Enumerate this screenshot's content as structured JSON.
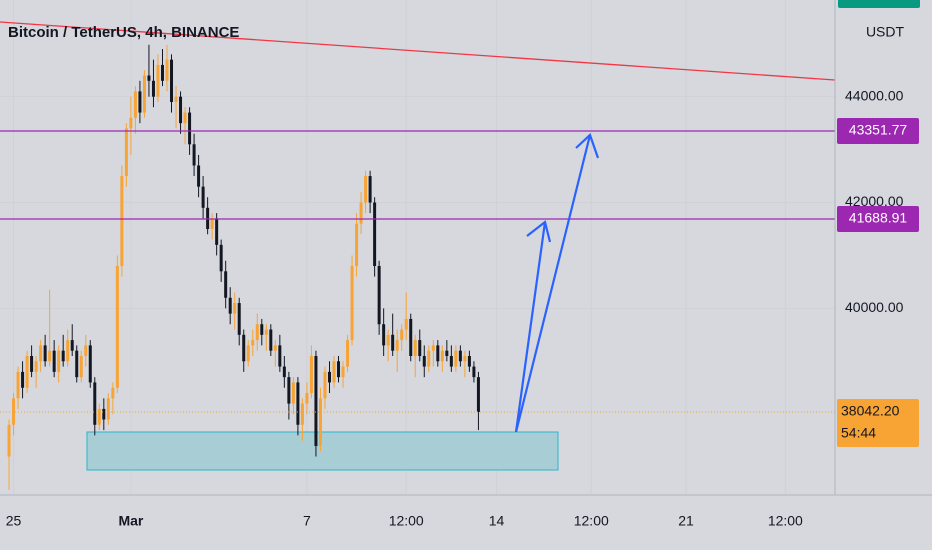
{
  "chart_data": {
    "type": "candlestick",
    "title": "Bitcoin / TetherUS, 4h, BINANCE",
    "currency": "USDT",
    "up_color": "#f7a434",
    "down_color": "#131722",
    "ylim": [
      36473,
      45827
    ],
    "xlim": [
      -2,
      183
    ],
    "yticks": [
      {
        "value": 44000,
        "label": "44000.00"
      },
      {
        "value": 42000,
        "label": "42000.00"
      },
      {
        "value": 40000,
        "label": "40000.00"
      }
    ],
    "xticks": [
      {
        "value": 1,
        "label": "25"
      },
      {
        "value": 27,
        "label": "Mar"
      },
      {
        "value": 66,
        "label": "7"
      },
      {
        "value": 88,
        "label": "12:00"
      },
      {
        "value": 108,
        "label": "14"
      },
      {
        "value": 129,
        "label": "12:00"
      },
      {
        "value": 150,
        "label": "21"
      },
      {
        "value": 172,
        "label": "12:00"
      }
    ],
    "grid": true,
    "hlines": [
      {
        "value": 43351.77,
        "label": "43351.77",
        "color": "#9c27b0"
      },
      {
        "value": 41688.91,
        "label": "41688.91",
        "color": "#9c27b0"
      }
    ],
    "last_price": {
      "value": 38042.2,
      "label": "38042.20",
      "countdown": "54:44",
      "color": "#f7a434"
    },
    "ohlc": [
      [
        37200,
        37900,
        36570,
        37800
      ],
      [
        37800,
        38400,
        37600,
        38300
      ],
      [
        38300,
        38900,
        38100,
        38800
      ],
      [
        38800,
        39000,
        38300,
        38500
      ],
      [
        38500,
        39200,
        38400,
        39100
      ],
      [
        39100,
        39300,
        38700,
        38800
      ],
      [
        38800,
        39100,
        38500,
        39000
      ],
      [
        39000,
        39400,
        38800,
        39300
      ],
      [
        39300,
        39500,
        38900,
        39000
      ],
      [
        39000,
        40350,
        38900,
        39200
      ],
      [
        39200,
        39400,
        38700,
        38800
      ],
      [
        38800,
        39300,
        38600,
        39200
      ],
      [
        39200,
        39500,
        38900,
        39000
      ],
      [
        39000,
        39600,
        38900,
        39400
      ],
      [
        39400,
        39700,
        39100,
        39200
      ],
      [
        39200,
        39300,
        38600,
        38700
      ],
      [
        38700,
        39200,
        38600,
        39100
      ],
      [
        39100,
        39500,
        38900,
        39300
      ],
      [
        39300,
        39400,
        38500,
        38600
      ],
      [
        38600,
        38700,
        37600,
        37800
      ],
      [
        37800,
        38200,
        37700,
        38100
      ],
      [
        38100,
        38300,
        37700,
        37900
      ],
      [
        37900,
        38400,
        37800,
        38300
      ],
      [
        38300,
        38600,
        38000,
        38500
      ],
      [
        38500,
        41000,
        38400,
        40800
      ],
      [
        40800,
        42700,
        40600,
        42500
      ],
      [
        42500,
        43500,
        42300,
        43400
      ],
      [
        43400,
        44000,
        42900,
        43600
      ],
      [
        43600,
        44200,
        43300,
        44100
      ],
      [
        44100,
        44300,
        43500,
        43700
      ],
      [
        43700,
        44500,
        43600,
        44400
      ],
      [
        44400,
        44980,
        44000,
        44300
      ],
      [
        44300,
        44700,
        43800,
        44000
      ],
      [
        44000,
        44800,
        43900,
        44600
      ],
      [
        44600,
        44900,
        44200,
        44300
      ],
      [
        44300,
        44980,
        44100,
        44700
      ],
      [
        44700,
        44800,
        43700,
        43900
      ],
      [
        43900,
        44200,
        43400,
        44000
      ],
      [
        44000,
        44100,
        43300,
        43500
      ],
      [
        43500,
        43800,
        43100,
        43700
      ],
      [
        43700,
        43800,
        42900,
        43100
      ],
      [
        43100,
        43300,
        42500,
        42700
      ],
      [
        42700,
        42900,
        42100,
        42300
      ],
      [
        42300,
        42500,
        41700,
        41900
      ],
      [
        41900,
        42100,
        41400,
        41500
      ],
      [
        41500,
        41800,
        41300,
        41700
      ],
      [
        41700,
        41800,
        41000,
        41200
      ],
      [
        41200,
        41300,
        40500,
        40700
      ],
      [
        40700,
        40900,
        40000,
        40200
      ],
      [
        40200,
        40400,
        39700,
        39900
      ],
      [
        39900,
        40300,
        39600,
        40100
      ],
      [
        40100,
        40200,
        39300,
        39500
      ],
      [
        39500,
        39600,
        38800,
        39000
      ],
      [
        39000,
        39400,
        38900,
        39300
      ],
      [
        39300,
        39600,
        39100,
        39400
      ],
      [
        39400,
        39900,
        39200,
        39700
      ],
      [
        39700,
        39800,
        39300,
        39500
      ],
      [
        39500,
        39700,
        39200,
        39600
      ],
      [
        39600,
        39700,
        39100,
        39200
      ],
      [
        39200,
        39400,
        38900,
        39300
      ],
      [
        39300,
        39500,
        38800,
        38900
      ],
      [
        38900,
        39100,
        38500,
        38700
      ],
      [
        38700,
        38800,
        37900,
        38200
      ],
      [
        38200,
        38700,
        38000,
        38600
      ],
      [
        38600,
        38700,
        37600,
        37800
      ],
      [
        37800,
        38300,
        37500,
        38200
      ],
      [
        38200,
        38600,
        38000,
        38400
      ],
      [
        38400,
        39300,
        38300,
        39100
      ],
      [
        39100,
        39200,
        37200,
        37400
      ],
      [
        37400,
        38500,
        37300,
        38300
      ],
      [
        38300,
        38900,
        38100,
        38800
      ],
      [
        38800,
        39000,
        38400,
        38600
      ],
      [
        38600,
        39100,
        38500,
        39000
      ],
      [
        39000,
        39100,
        38600,
        38700
      ],
      [
        38700,
        39000,
        38500,
        38900
      ],
      [
        38900,
        39500,
        38800,
        39400
      ],
      [
        39400,
        41000,
        39300,
        40800
      ],
      [
        40800,
        41800,
        40600,
        41600
      ],
      [
        41600,
        42200,
        41400,
        42000
      ],
      [
        42000,
        42600,
        41800,
        42500
      ],
      [
        42500,
        42600,
        41800,
        42000
      ],
      [
        42000,
        42100,
        40600,
        40800
      ],
      [
        40800,
        40900,
        39500,
        39700
      ],
      [
        39700,
        40000,
        39100,
        39300
      ],
      [
        39300,
        39600,
        39000,
        39500
      ],
      [
        39500,
        39900,
        39100,
        39200
      ],
      [
        39200,
        39600,
        38800,
        39400
      ],
      [
        39400,
        39700,
        39200,
        39600
      ],
      [
        39600,
        40300,
        39400,
        39800
      ],
      [
        39800,
        39900,
        39000,
        39100
      ],
      [
        39100,
        39500,
        38700,
        39400
      ],
      [
        39400,
        39600,
        39000,
        39100
      ],
      [
        39100,
        39300,
        38700,
        38900
      ],
      [
        38900,
        39300,
        38800,
        39200
      ],
      [
        39200,
        39400,
        38900,
        39300
      ],
      [
        39300,
        39400,
        38900,
        39000
      ],
      [
        39000,
        39300,
        38800,
        39200
      ],
      [
        39200,
        39400,
        39000,
        39100
      ],
      [
        39100,
        39300,
        38800,
        38900
      ],
      [
        38900,
        39300,
        38800,
        39200
      ],
      [
        39200,
        39300,
        38900,
        39000
      ],
      [
        39000,
        39200,
        38700,
        39100
      ],
      [
        39100,
        39200,
        38800,
        38900
      ],
      [
        38900,
        39000,
        38600,
        38700
      ],
      [
        38700,
        38800,
        37700,
        38042.2
      ]
    ]
  }
}
